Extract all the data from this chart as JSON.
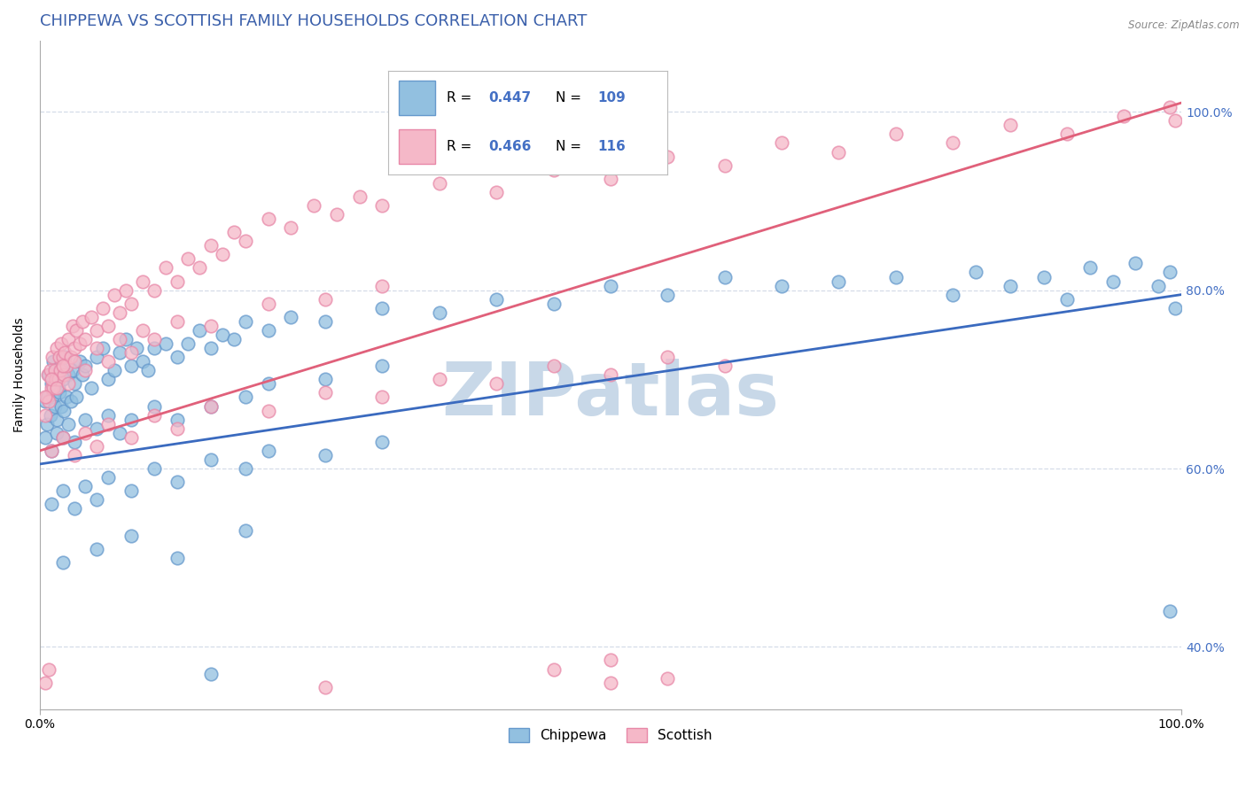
{
  "title": "CHIPPEWA VS SCOTTISH FAMILY HOUSEHOLDS CORRELATION CHART",
  "source": "Source: ZipAtlas.com",
  "ylabel": "Family Households",
  "x_tick_labels": [
    "0.0%",
    "100.0%"
  ],
  "y_tick_labels": [
    "40.0%",
    "60.0%",
    "80.0%",
    "100.0%"
  ],
  "x_range": [
    0.0,
    100.0
  ],
  "y_range": [
    33.0,
    108.0
  ],
  "chippewa_color": "#92c0e0",
  "scottish_color": "#f5b8c8",
  "chippewa_edge": "#6699cc",
  "scottish_edge": "#e888a8",
  "chippewa_line_color": "#3a6abf",
  "scottish_line_color": "#e0607a",
  "chippewa_R": 0.447,
  "chippewa_N": 109,
  "scottish_R": 0.466,
  "scottish_N": 116,
  "chippewa_reg": [
    0.0,
    60.5,
    100.0,
    79.5
  ],
  "scottish_reg": [
    0.0,
    62.0,
    100.0,
    101.0
  ],
  "chippewa_scatter": [
    [
      0.5,
      67.5
    ],
    [
      0.6,
      65.0
    ],
    [
      0.7,
      68.0
    ],
    [
      0.8,
      70.5
    ],
    [
      0.9,
      66.0
    ],
    [
      1.0,
      69.5
    ],
    [
      1.1,
      68.0
    ],
    [
      1.2,
      72.0
    ],
    [
      1.3,
      67.0
    ],
    [
      1.4,
      70.0
    ],
    [
      1.5,
      65.5
    ],
    [
      1.6,
      69.0
    ],
    [
      1.7,
      68.5
    ],
    [
      1.8,
      71.5
    ],
    [
      1.9,
      67.0
    ],
    [
      2.0,
      70.0
    ],
    [
      2.1,
      66.5
    ],
    [
      2.2,
      72.5
    ],
    [
      2.3,
      68.0
    ],
    [
      2.5,
      70.5
    ],
    [
      2.7,
      67.5
    ],
    [
      2.9,
      71.0
    ],
    [
      3.0,
      69.5
    ],
    [
      3.2,
      68.0
    ],
    [
      3.5,
      72.0
    ],
    [
      3.7,
      70.5
    ],
    [
      4.0,
      71.5
    ],
    [
      4.5,
      69.0
    ],
    [
      5.0,
      72.5
    ],
    [
      5.5,
      73.5
    ],
    [
      6.0,
      70.0
    ],
    [
      6.5,
      71.0
    ],
    [
      7.0,
      73.0
    ],
    [
      7.5,
      74.5
    ],
    [
      8.0,
      71.5
    ],
    [
      8.5,
      73.5
    ],
    [
      9.0,
      72.0
    ],
    [
      9.5,
      71.0
    ],
    [
      10.0,
      73.5
    ],
    [
      11.0,
      74.0
    ],
    [
      12.0,
      72.5
    ],
    [
      13.0,
      74.0
    ],
    [
      14.0,
      75.5
    ],
    [
      15.0,
      73.5
    ],
    [
      16.0,
      75.0
    ],
    [
      17.0,
      74.5
    ],
    [
      18.0,
      76.5
    ],
    [
      20.0,
      75.5
    ],
    [
      22.0,
      77.0
    ],
    [
      25.0,
      76.5
    ],
    [
      30.0,
      78.0
    ],
    [
      35.0,
      77.5
    ],
    [
      40.0,
      79.0
    ],
    [
      45.0,
      78.5
    ],
    [
      50.0,
      80.5
    ],
    [
      55.0,
      79.5
    ],
    [
      60.0,
      81.5
    ],
    [
      65.0,
      80.5
    ],
    [
      70.0,
      81.0
    ],
    [
      75.0,
      81.5
    ],
    [
      80.0,
      79.5
    ],
    [
      82.0,
      82.0
    ],
    [
      85.0,
      80.5
    ],
    [
      88.0,
      81.5
    ],
    [
      90.0,
      79.0
    ],
    [
      92.0,
      82.5
    ],
    [
      94.0,
      81.0
    ],
    [
      96.0,
      83.0
    ],
    [
      98.0,
      80.5
    ],
    [
      99.0,
      82.0
    ],
    [
      99.5,
      78.0
    ],
    [
      0.5,
      63.5
    ],
    [
      1.0,
      62.0
    ],
    [
      1.5,
      64.0
    ],
    [
      2.0,
      63.5
    ],
    [
      2.5,
      65.0
    ],
    [
      3.0,
      63.0
    ],
    [
      4.0,
      65.5
    ],
    [
      5.0,
      64.5
    ],
    [
      6.0,
      66.0
    ],
    [
      7.0,
      64.0
    ],
    [
      8.0,
      65.5
    ],
    [
      10.0,
      67.0
    ],
    [
      12.0,
      65.5
    ],
    [
      15.0,
      67.0
    ],
    [
      18.0,
      68.0
    ],
    [
      20.0,
      69.5
    ],
    [
      25.0,
      70.0
    ],
    [
      30.0,
      71.5
    ],
    [
      1.0,
      56.0
    ],
    [
      2.0,
      57.5
    ],
    [
      3.0,
      55.5
    ],
    [
      4.0,
      58.0
    ],
    [
      5.0,
      56.5
    ],
    [
      6.0,
      59.0
    ],
    [
      8.0,
      57.5
    ],
    [
      10.0,
      60.0
    ],
    [
      12.0,
      58.5
    ],
    [
      15.0,
      61.0
    ],
    [
      18.0,
      60.0
    ],
    [
      20.0,
      62.0
    ],
    [
      25.0,
      61.5
    ],
    [
      30.0,
      63.0
    ],
    [
      2.0,
      49.5
    ],
    [
      5.0,
      51.0
    ],
    [
      8.0,
      52.5
    ],
    [
      12.0,
      50.0
    ],
    [
      18.0,
      53.0
    ],
    [
      15.0,
      37.0
    ],
    [
      99.0,
      44.0
    ]
  ],
  "scottish_scatter": [
    [
      0.5,
      66.0
    ],
    [
      0.6,
      68.0
    ],
    [
      0.7,
      70.5
    ],
    [
      0.8,
      67.5
    ],
    [
      0.9,
      71.0
    ],
    [
      1.0,
      69.0
    ],
    [
      1.1,
      72.5
    ],
    [
      1.2,
      69.0
    ],
    [
      1.3,
      71.0
    ],
    [
      1.4,
      70.0
    ],
    [
      1.5,
      73.5
    ],
    [
      1.6,
      70.0
    ],
    [
      1.7,
      72.5
    ],
    [
      1.8,
      71.0
    ],
    [
      1.9,
      74.0
    ],
    [
      2.0,
      72.5
    ],
    [
      2.1,
      70.5
    ],
    [
      2.2,
      73.0
    ],
    [
      2.3,
      71.5
    ],
    [
      2.5,
      74.5
    ],
    [
      2.7,
      72.5
    ],
    [
      2.9,
      76.0
    ],
    [
      3.0,
      73.5
    ],
    [
      3.2,
      75.5
    ],
    [
      3.5,
      74.0
    ],
    [
      3.7,
      76.5
    ],
    [
      4.0,
      74.5
    ],
    [
      4.5,
      77.0
    ],
    [
      5.0,
      75.5
    ],
    [
      5.5,
      78.0
    ],
    [
      6.0,
      76.0
    ],
    [
      6.5,
      79.5
    ],
    [
      7.0,
      77.5
    ],
    [
      7.5,
      80.0
    ],
    [
      8.0,
      78.5
    ],
    [
      9.0,
      81.0
    ],
    [
      10.0,
      80.0
    ],
    [
      11.0,
      82.5
    ],
    [
      12.0,
      81.0
    ],
    [
      13.0,
      83.5
    ],
    [
      14.0,
      82.5
    ],
    [
      15.0,
      85.0
    ],
    [
      16.0,
      84.0
    ],
    [
      17.0,
      86.5
    ],
    [
      18.0,
      85.5
    ],
    [
      20.0,
      88.0
    ],
    [
      22.0,
      87.0
    ],
    [
      24.0,
      89.5
    ],
    [
      26.0,
      88.5
    ],
    [
      28.0,
      90.5
    ],
    [
      30.0,
      89.5
    ],
    [
      35.0,
      92.0
    ],
    [
      40.0,
      91.0
    ],
    [
      45.0,
      93.5
    ],
    [
      50.0,
      92.5
    ],
    [
      55.0,
      95.0
    ],
    [
      60.0,
      94.0
    ],
    [
      65.0,
      96.5
    ],
    [
      70.0,
      95.5
    ],
    [
      75.0,
      97.5
    ],
    [
      80.0,
      96.5
    ],
    [
      85.0,
      98.5
    ],
    [
      90.0,
      97.5
    ],
    [
      95.0,
      99.5
    ],
    [
      99.0,
      100.5
    ],
    [
      99.5,
      99.0
    ],
    [
      0.5,
      68.0
    ],
    [
      1.0,
      70.0
    ],
    [
      1.5,
      69.0
    ],
    [
      2.0,
      71.5
    ],
    [
      2.5,
      69.5
    ],
    [
      3.0,
      72.0
    ],
    [
      4.0,
      71.0
    ],
    [
      5.0,
      73.5
    ],
    [
      6.0,
      72.0
    ],
    [
      7.0,
      74.5
    ],
    [
      8.0,
      73.0
    ],
    [
      9.0,
      75.5
    ],
    [
      10.0,
      74.5
    ],
    [
      12.0,
      76.5
    ],
    [
      15.0,
      76.0
    ],
    [
      20.0,
      78.5
    ],
    [
      25.0,
      79.0
    ],
    [
      30.0,
      80.5
    ],
    [
      1.0,
      62.0
    ],
    [
      2.0,
      63.5
    ],
    [
      3.0,
      61.5
    ],
    [
      4.0,
      64.0
    ],
    [
      5.0,
      62.5
    ],
    [
      6.0,
      65.0
    ],
    [
      8.0,
      63.5
    ],
    [
      10.0,
      66.0
    ],
    [
      12.0,
      64.5
    ],
    [
      15.0,
      67.0
    ],
    [
      20.0,
      66.5
    ],
    [
      25.0,
      68.5
    ],
    [
      30.0,
      68.0
    ],
    [
      35.0,
      70.0
    ],
    [
      40.0,
      69.5
    ],
    [
      45.0,
      71.5
    ],
    [
      50.0,
      70.5
    ],
    [
      55.0,
      72.5
    ],
    [
      60.0,
      71.5
    ],
    [
      0.5,
      36.0
    ],
    [
      0.8,
      37.5
    ],
    [
      25.0,
      35.5
    ],
    [
      45.0,
      37.5
    ],
    [
      50.0,
      36.0
    ],
    [
      50.0,
      38.5
    ],
    [
      55.0,
      36.5
    ]
  ],
  "legend_chippewa_label": "Chippewa",
  "legend_scottish_label": "Scottish",
  "watermark_text": "ZIPatlas",
  "watermark_color": "#c8d8e8",
  "title_color": "#3a5faa",
  "title_fontsize": 13,
  "axis_label_fontsize": 10,
  "tick_fontsize": 10,
  "legend_fontsize": 11,
  "r_n_color": "#4470c4",
  "grid_color": "#d5dce8",
  "grid_style": "--"
}
